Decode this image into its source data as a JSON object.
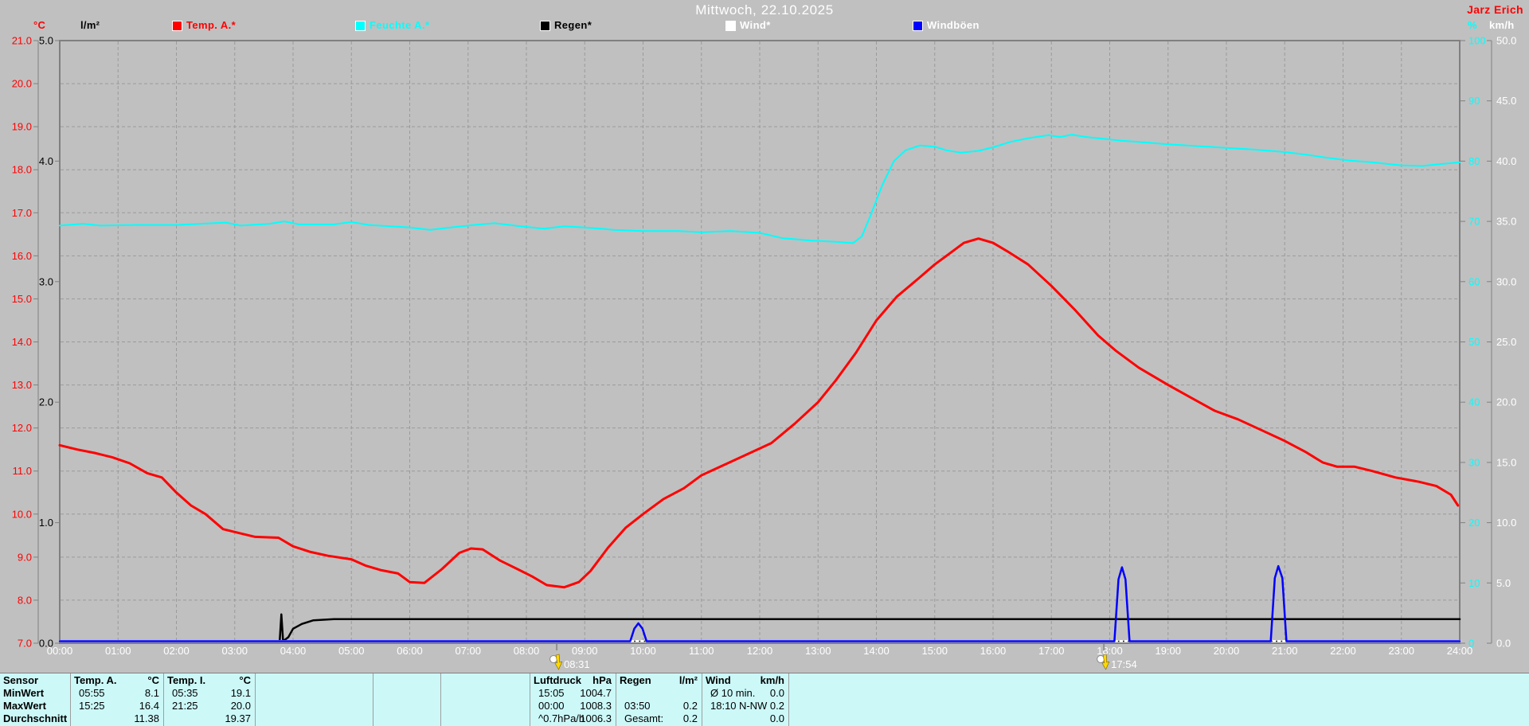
{
  "window": {
    "title": "Mittwoch, 22.10.2025",
    "watermark": "Jarz Erich",
    "background": "#C0C0C0"
  },
  "legend": {
    "units": {
      "temp": "°C",
      "rain": "l/m²",
      "humidity": "%",
      "wind": "km/h"
    },
    "items": [
      {
        "key": "temp-a",
        "label": "Temp. A.*",
        "color": "#FF0000",
        "text_color": "#FF0000"
      },
      {
        "key": "feuchte-a",
        "label": "Feuchte A.*",
        "color": "#00FFFF",
        "text_color": "#00FFFF"
      },
      {
        "key": "regen",
        "label": "Regen*",
        "color": "#000000",
        "text_color": "#000000"
      },
      {
        "key": "wind",
        "label": "Wind*",
        "color": "#FFFFFF",
        "text_color": "#FFFFFF"
      },
      {
        "key": "windboeen",
        "label": "Windböen",
        "color": "#0000FF",
        "text_color": "#FFFFFF"
      }
    ]
  },
  "chart_data": {
    "type": "line",
    "title": "Mittwoch, 22.10.2025",
    "x": {
      "unit": "hours",
      "range": [
        0,
        24
      ],
      "tick_interval_hours": 1,
      "tick_labels": [
        "00:00",
        "01:00",
        "02:00",
        "03:00",
        "04:00",
        "05:00",
        "06:00",
        "07:00",
        "08:00",
        "09:00",
        "10:00",
        "11:00",
        "12:00",
        "13:00",
        "14:00",
        "15:00",
        "16:00",
        "17:00",
        "18:00",
        "19:00",
        "20:00",
        "21:00",
        "22:00",
        "23:00",
        "24:00"
      ]
    },
    "axes": {
      "temp_c": {
        "side": "left",
        "color": "#FF0000",
        "min": 7,
        "max": 21,
        "tick_labels": [
          "21.0",
          "20.0",
          "19.0",
          "18.0",
          "17.0",
          "16.0",
          "15.0",
          "14.0",
          "13.0",
          "12.0",
          "11.0",
          "10.0",
          "9.0",
          "8.0",
          "7.0"
        ]
      },
      "rain_lm2": {
        "side": "left",
        "color": "#000000",
        "min": 0,
        "max": 5,
        "tick_labels": [
          "5.0",
          "4.0",
          "3.0",
          "2.0",
          "1.0",
          "0.0"
        ]
      },
      "hum_pct": {
        "side": "right",
        "color": "#00FFFF",
        "min": 0,
        "max": 100,
        "tick_labels": [
          "100",
          "90",
          "80",
          "70",
          "60",
          "50",
          "40",
          "30",
          "20",
          "10",
          "0"
        ]
      },
      "wind_kmh": {
        "side": "right",
        "color": "#FFFFFF",
        "min": 0,
        "max": 50,
        "tick_labels": [
          "50.0",
          "45.0",
          "40.0",
          "35.0",
          "30.0",
          "25.0",
          "20.0",
          "15.0",
          "10.0",
          "5.0",
          "0.0"
        ]
      }
    },
    "grid": {
      "vertical_every_hours": 1,
      "horizontal_every_temp_c": 1,
      "style": "dashed"
    },
    "series": [
      {
        "name": "Temp. A.",
        "key": "temp-a",
        "axis": "temp_c",
        "color": "#FF0000",
        "width": 3,
        "points": [
          [
            0,
            11.6
          ],
          [
            0.3,
            11.5
          ],
          [
            0.6,
            11.42
          ],
          [
            0.9,
            11.32
          ],
          [
            1.2,
            11.18
          ],
          [
            1.5,
            10.95
          ],
          [
            1.75,
            10.85
          ],
          [
            2,
            10.5
          ],
          [
            2.25,
            10.2
          ],
          [
            2.5,
            10.0
          ],
          [
            2.8,
            9.65
          ],
          [
            3.1,
            9.55
          ],
          [
            3.35,
            9.47
          ],
          [
            3.75,
            9.45
          ],
          [
            4,
            9.25
          ],
          [
            4.3,
            9.12
          ],
          [
            4.6,
            9.03
          ],
          [
            5,
            8.95
          ],
          [
            5.25,
            8.8
          ],
          [
            5.5,
            8.7
          ],
          [
            5.8,
            8.62
          ],
          [
            6,
            8.42
          ],
          [
            6.25,
            8.4
          ],
          [
            6.55,
            8.72
          ],
          [
            6.85,
            9.1
          ],
          [
            7.05,
            9.2
          ],
          [
            7.25,
            9.18
          ],
          [
            7.55,
            8.92
          ],
          [
            7.85,
            8.72
          ],
          [
            8.1,
            8.55
          ],
          [
            8.35,
            8.35
          ],
          [
            8.65,
            8.3
          ],
          [
            8.9,
            8.42
          ],
          [
            9.1,
            8.68
          ],
          [
            9.4,
            9.22
          ],
          [
            9.7,
            9.68
          ],
          [
            10,
            10.0
          ],
          [
            10.35,
            10.35
          ],
          [
            10.7,
            10.6
          ],
          [
            11,
            10.9
          ],
          [
            11.4,
            11.15
          ],
          [
            11.8,
            11.4
          ],
          [
            12.2,
            11.65
          ],
          [
            12.6,
            12.1
          ],
          [
            13,
            12.6
          ],
          [
            13.3,
            13.1
          ],
          [
            13.65,
            13.75
          ],
          [
            14,
            14.5
          ],
          [
            14.35,
            15.05
          ],
          [
            14.7,
            15.45
          ],
          [
            15,
            15.8
          ],
          [
            15.25,
            16.05
          ],
          [
            15.5,
            16.3
          ],
          [
            15.75,
            16.4
          ],
          [
            16,
            16.3
          ],
          [
            16.25,
            16.1
          ],
          [
            16.6,
            15.8
          ],
          [
            17,
            15.3
          ],
          [
            17.4,
            14.75
          ],
          [
            17.8,
            14.15
          ],
          [
            18.1,
            13.8
          ],
          [
            18.5,
            13.4
          ],
          [
            19,
            13.0
          ],
          [
            19.4,
            12.7
          ],
          [
            19.8,
            12.4
          ],
          [
            20.2,
            12.2
          ],
          [
            20.6,
            11.95
          ],
          [
            21,
            11.7
          ],
          [
            21.35,
            11.45
          ],
          [
            21.65,
            11.2
          ],
          [
            21.9,
            11.1
          ],
          [
            22.2,
            11.1
          ],
          [
            22.5,
            11.0
          ],
          [
            22.9,
            10.85
          ],
          [
            23.3,
            10.75
          ],
          [
            23.6,
            10.65
          ],
          [
            23.85,
            10.45
          ],
          [
            23.97,
            10.2
          ]
        ]
      },
      {
        "name": "Feuchte A.",
        "key": "feuchte-a",
        "axis": "hum_pct",
        "color": "#00FFFF",
        "width": 2,
        "points": [
          [
            0,
            69.3
          ],
          [
            0.4,
            69.6
          ],
          [
            0.7,
            69.3
          ],
          [
            1.3,
            69.4
          ],
          [
            2,
            69.4
          ],
          [
            2.85,
            69.8
          ],
          [
            3.1,
            69.3
          ],
          [
            3.6,
            69.6
          ],
          [
            3.85,
            70.0
          ],
          [
            4.1,
            69.5
          ],
          [
            4.7,
            69.5
          ],
          [
            5,
            69.9
          ],
          [
            5.3,
            69.4
          ],
          [
            6,
            69.0
          ],
          [
            6.35,
            68.6
          ],
          [
            6.7,
            69.0
          ],
          [
            7.1,
            69.4
          ],
          [
            7.45,
            69.7
          ],
          [
            7.9,
            69.2
          ],
          [
            8.3,
            68.8
          ],
          [
            8.65,
            69.2
          ],
          [
            9,
            69.0
          ],
          [
            9.5,
            68.6
          ],
          [
            10,
            68.4
          ],
          [
            10.6,
            68.4
          ],
          [
            11,
            68.2
          ],
          [
            11.5,
            68.4
          ],
          [
            12,
            68.1
          ],
          [
            12.4,
            67.2
          ],
          [
            12.9,
            66.8
          ],
          [
            13.3,
            66.6
          ],
          [
            13.6,
            66.4
          ],
          [
            13.75,
            67.5
          ],
          [
            13.9,
            71
          ],
          [
            14.1,
            76
          ],
          [
            14.3,
            80
          ],
          [
            14.5,
            81.8
          ],
          [
            14.75,
            82.6
          ],
          [
            15,
            82.4
          ],
          [
            15.2,
            81.8
          ],
          [
            15.45,
            81.4
          ],
          [
            15.75,
            81.7
          ],
          [
            16,
            82.3
          ],
          [
            16.3,
            83.2
          ],
          [
            16.6,
            83.8
          ],
          [
            16.95,
            84.3
          ],
          [
            17.15,
            84.0
          ],
          [
            17.35,
            84.4
          ],
          [
            17.6,
            84.0
          ],
          [
            17.9,
            83.7
          ],
          [
            18.2,
            83.4
          ],
          [
            18.6,
            83.1
          ],
          [
            19,
            82.8
          ],
          [
            19.5,
            82.5
          ],
          [
            20,
            82.2
          ],
          [
            20.5,
            81.9
          ],
          [
            21,
            81.5
          ],
          [
            21.35,
            81.1
          ],
          [
            21.7,
            80.6
          ],
          [
            22.1,
            80.1
          ],
          [
            22.5,
            79.8
          ],
          [
            23,
            79.3
          ],
          [
            23.35,
            79.2
          ],
          [
            23.65,
            79.5
          ],
          [
            24,
            79.8
          ]
        ]
      },
      {
        "name": "Regen",
        "key": "regen",
        "axis": "rain_lm2",
        "color": "#000000",
        "width": 2.5,
        "points": [
          [
            0,
            0
          ],
          [
            3.77,
            0
          ],
          [
            3.8,
            0.24
          ],
          [
            3.83,
            0.01
          ],
          [
            3.92,
            0.05
          ],
          [
            4.0,
            0.12
          ],
          [
            4.15,
            0.16
          ],
          [
            4.35,
            0.19
          ],
          [
            4.7,
            0.2
          ],
          [
            24,
            0.2
          ]
        ]
      },
      {
        "name": "Wind",
        "key": "wind",
        "axis": "wind_kmh",
        "color": "#FFFFFF",
        "width": 3,
        "points": [
          [
            0,
            0
          ],
          [
            24,
            0
          ]
        ]
      },
      {
        "name": "Windböen",
        "key": "windboeen",
        "axis": "wind_kmh",
        "color": "#0000FF",
        "width": 2.5,
        "points": [
          [
            0,
            0
          ],
          [
            9.78,
            0
          ],
          [
            9.85,
            1.2
          ],
          [
            9.92,
            1.65
          ],
          [
            9.99,
            1.2
          ],
          [
            10.06,
            0
          ],
          [
            18.08,
            0
          ],
          [
            18.15,
            5.3
          ],
          [
            18.21,
            6.3
          ],
          [
            18.27,
            5.3
          ],
          [
            18.34,
            0
          ],
          [
            20.76,
            0
          ],
          [
            20.83,
            5.4
          ],
          [
            20.89,
            6.4
          ],
          [
            20.96,
            5.4
          ],
          [
            21.03,
            0
          ],
          [
            24,
            0
          ]
        ]
      }
    ],
    "annotations": [
      {
        "label": "08:31",
        "hour": 8.52,
        "icon": "sun-marker"
      },
      {
        "label": "17:54",
        "hour": 17.9,
        "icon": "sun-marker"
      }
    ]
  },
  "table": {
    "row_labels": [
      "Sensor",
      "MinWert",
      "MaxWert",
      "Durchschnitt"
    ],
    "columns": [
      {
        "key": "temp-a",
        "h1": "Temp. A.",
        "h2": "°C",
        "rows": [
          [
            "05:55",
            "8.1"
          ],
          [
            "15:25",
            "16.4"
          ],
          [
            "",
            "11.38"
          ]
        ]
      },
      {
        "key": "temp-i",
        "h1": "Temp. I.",
        "h2": "°C",
        "rows": [
          [
            "05:35",
            "19.1"
          ],
          [
            "21:25",
            "20.0"
          ],
          [
            "",
            "19.37"
          ]
        ]
      },
      {
        "key": "empty-1",
        "h1": "",
        "h2": "",
        "rows": [
          [
            "",
            ""
          ],
          [
            "",
            ""
          ],
          [
            "",
            ""
          ]
        ]
      },
      {
        "key": "empty-2",
        "h1": "",
        "h2": "",
        "rows": [
          [
            "",
            ""
          ],
          [
            "",
            ""
          ],
          [
            "",
            ""
          ]
        ]
      },
      {
        "key": "empty-3",
        "h1": "",
        "h2": "",
        "rows": [
          [
            "",
            ""
          ],
          [
            "",
            ""
          ],
          [
            "",
            ""
          ]
        ]
      },
      {
        "key": "luftdruck",
        "h1": "Luftdruck",
        "h2": "hPa",
        "rows": [
          [
            "15:05",
            "1004.7"
          ],
          [
            "00:00",
            "1008.3"
          ],
          [
            "^0.7hPa/h",
            "1006.3"
          ]
        ]
      },
      {
        "key": "regen",
        "h1": "Regen",
        "h2": "l/m²",
        "rows": [
          [
            "",
            ""
          ],
          [
            "03:50",
            "0.2"
          ],
          [
            "Gesamt:",
            "0.2"
          ]
        ]
      },
      {
        "key": "wind",
        "h1": "Wind",
        "h2": "km/h",
        "rows": [
          [
            "Ø 10 min.",
            "0.0"
          ],
          [
            "18:10",
            "N-NW 0.2"
          ],
          [
            "",
            "0.0"
          ]
        ]
      },
      {
        "key": "empty-4",
        "h1": "",
        "h2": "",
        "rows": [
          [
            "",
            ""
          ],
          [
            "",
            ""
          ],
          [
            "",
            ""
          ]
        ]
      }
    ]
  }
}
